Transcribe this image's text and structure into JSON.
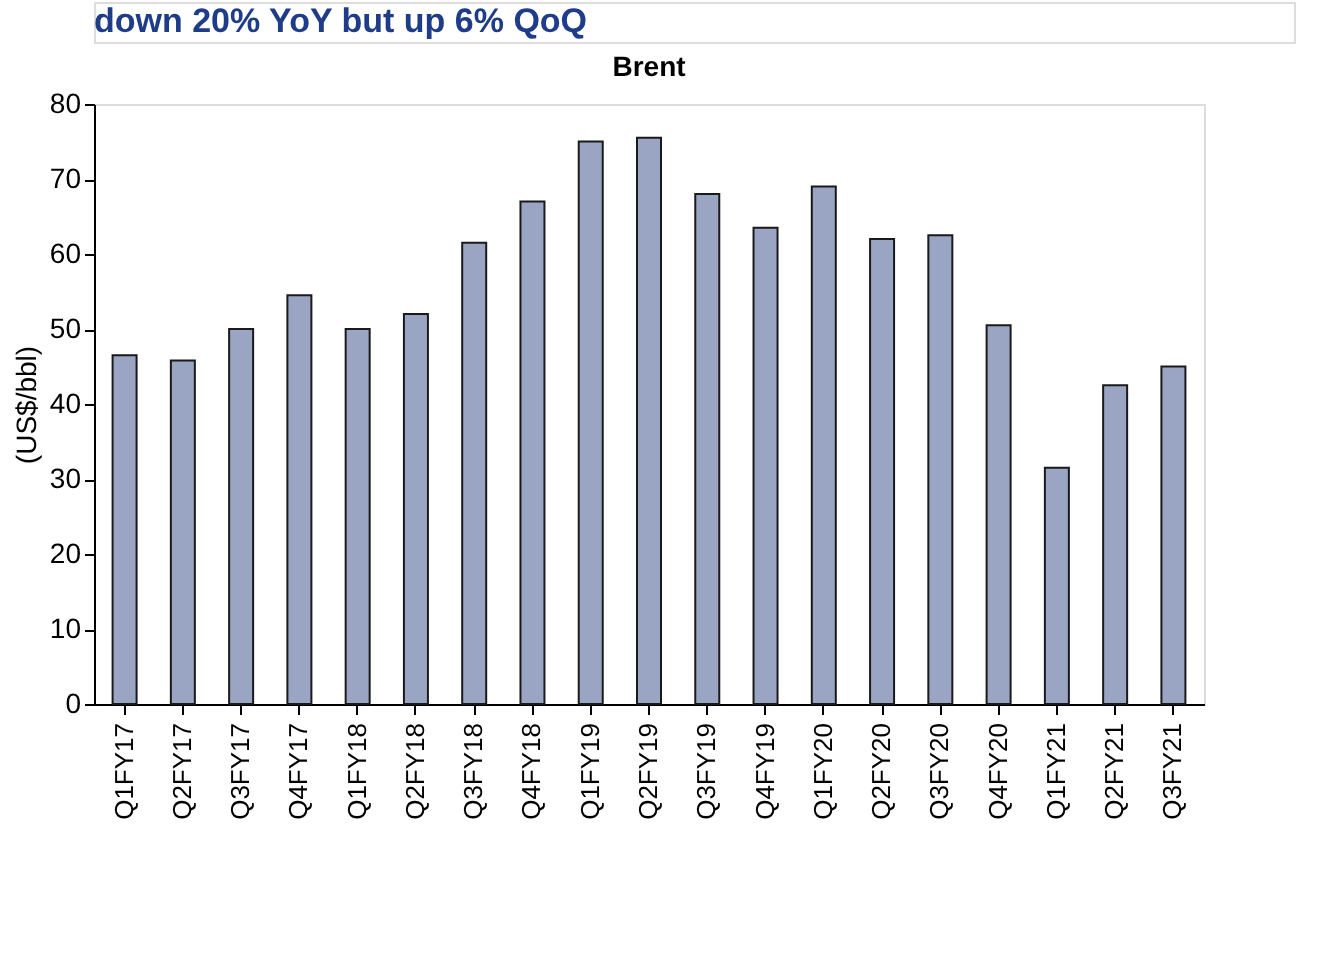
{
  "chart_data": {
    "type": "bar",
    "title": "Brent",
    "ylabel": "(US$/bbl)",
    "annotations": [
      "down 20% YoY but up 6% QoQ"
    ],
    "categories": [
      "Q1FY17",
      "Q2FY17",
      "Q3FY17",
      "Q4FY17",
      "Q1FY18",
      "Q2FY18",
      "Q3FY18",
      "Q4FY18",
      "Q1FY19",
      "Q2FY19",
      "Q3FY19",
      "Q4FY19",
      "Q1FY20",
      "Q2FY20",
      "Q3FY20",
      "Q4FY20",
      "Q1FY21",
      "Q2FY21",
      "Q3FY21"
    ],
    "values": [
      46.5,
      45.8,
      50,
      54.5,
      50,
      52,
      61.5,
      67,
      75,
      75.5,
      68,
      63.5,
      69,
      62,
      62.5,
      50.5,
      31.5,
      42.5,
      45
    ],
    "color": "#9aa5c4",
    "ylim": [
      0,
      80
    ],
    "yticks": [
      0,
      10,
      20,
      30,
      40,
      50,
      60,
      70,
      80
    ],
    "grid": false
  }
}
